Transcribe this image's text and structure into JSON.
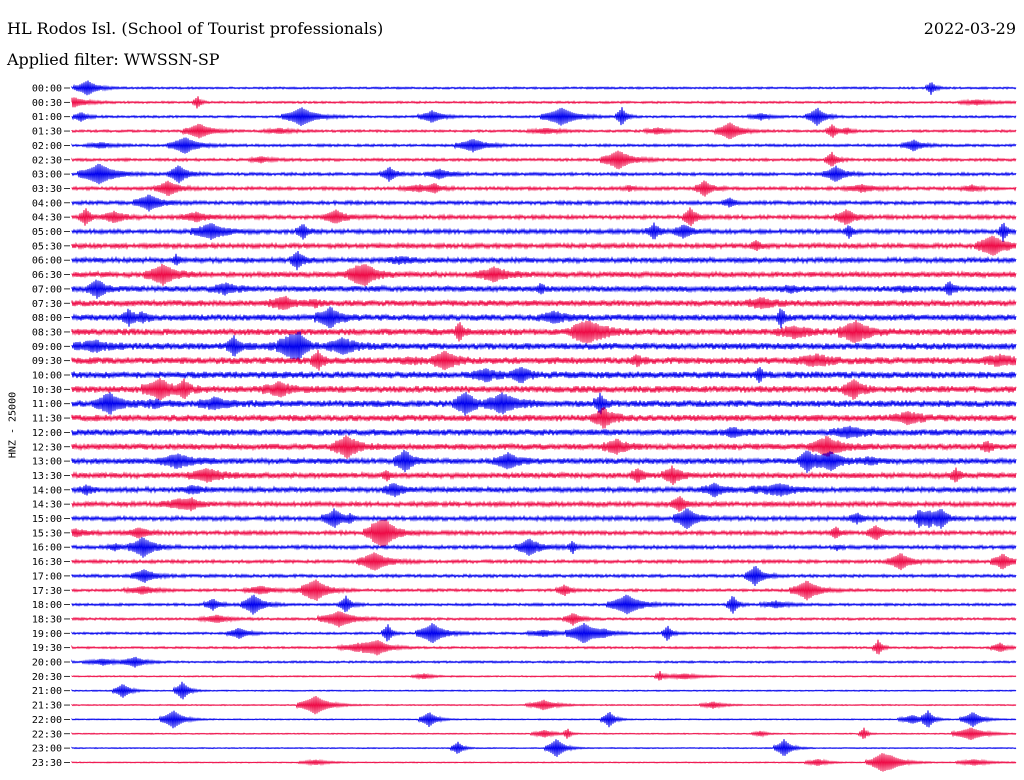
{
  "header": {
    "title": "HL Rodos Isl. (School of Tourist professionals)",
    "date": "2022-03-29",
    "filter": "Applied filter: WWSSN-SP"
  },
  "chart_data": {
    "type": "line",
    "title": "HL Rodos Isl. (School of Tourist professionals)",
    "ylabel": "HNZ - 25000",
    "colors": [
      "#0000ee",
      "#ee0a46"
    ],
    "row_labels": [
      "00:00",
      "00:30",
      "01:00",
      "01:30",
      "02:00",
      "02:30",
      "03:00",
      "03:30",
      "04:00",
      "04:30",
      "05:00",
      "05:30",
      "06:00",
      "06:30",
      "07:00",
      "07:30",
      "08:00",
      "08:30",
      "09:00",
      "09:30",
      "10:00",
      "10:30",
      "11:00",
      "11:30",
      "12:00",
      "12:30",
      "13:00",
      "13:30",
      "14:00",
      "14:30",
      "15:00",
      "15:30",
      "16:00",
      "16:30",
      "17:00",
      "17:30",
      "18:00",
      "18:30",
      "19:00",
      "19:30",
      "20:00",
      "20:30",
      "21:00",
      "21:30",
      "22:00",
      "22:30",
      "23:00",
      "23:30"
    ]
  }
}
